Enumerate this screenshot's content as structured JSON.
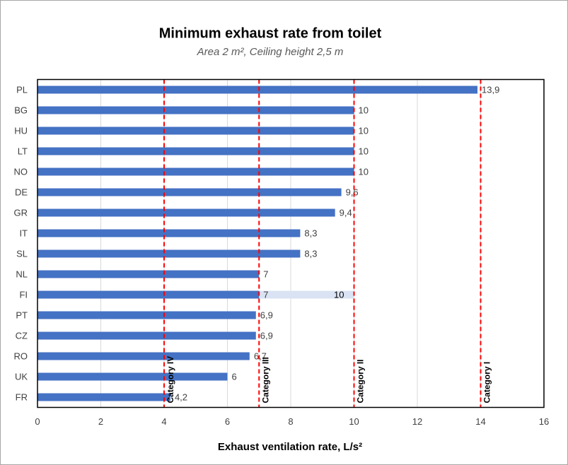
{
  "chart_data": {
    "type": "bar",
    "orientation": "horizontal",
    "title": "Minimum exhaust rate from toilet",
    "subtitle": "Area 2 m², Ceiling height 2,5 m",
    "x_label": "Exhaust ventilation rate, L/s²",
    "categories": [
      "PL",
      "BG",
      "HU",
      "LT",
      "NO",
      "DE",
      "GR",
      "IT",
      "SL",
      "NL",
      "FI",
      "PT",
      "CZ",
      "RO",
      "UK",
      "FR"
    ],
    "series": [
      {
        "color": "#4472c4",
        "values": [
          13.9,
          10,
          10,
          10,
          10,
          9.6,
          9.4,
          8.3,
          8.3,
          7,
          7,
          6.9,
          6.9,
          6.7,
          6,
          4.2
        ],
        "value_labels": [
          "13,9",
          "10",
          "10",
          "10",
          "10",
          "9,6",
          "9,4",
          "8,3",
          "8,3",
          "7",
          "7",
          "6,9",
          "6,9",
          "6,7",
          "6",
          "4,2"
        ]
      },
      {
        "color": "#dae3f3",
        "values": [
          null,
          null,
          null,
          null,
          null,
          null,
          null,
          null,
          null,
          null,
          10,
          null,
          null,
          null,
          null,
          null
        ]
      }
    ],
    "xlim": [
      0,
      16
    ],
    "xticks": [
      0,
      2,
      4,
      6,
      8,
      10,
      12,
      14,
      16
    ],
    "grid": true,
    "reference_lines": [
      {
        "value": 4,
        "label": "Category IV"
      },
      {
        "value": 7,
        "label": "Category III"
      },
      {
        "value": 10,
        "label": "Category II"
      },
      {
        "value": 14,
        "label": "Category I"
      }
    ],
    "reference_color": "#ff0000"
  }
}
